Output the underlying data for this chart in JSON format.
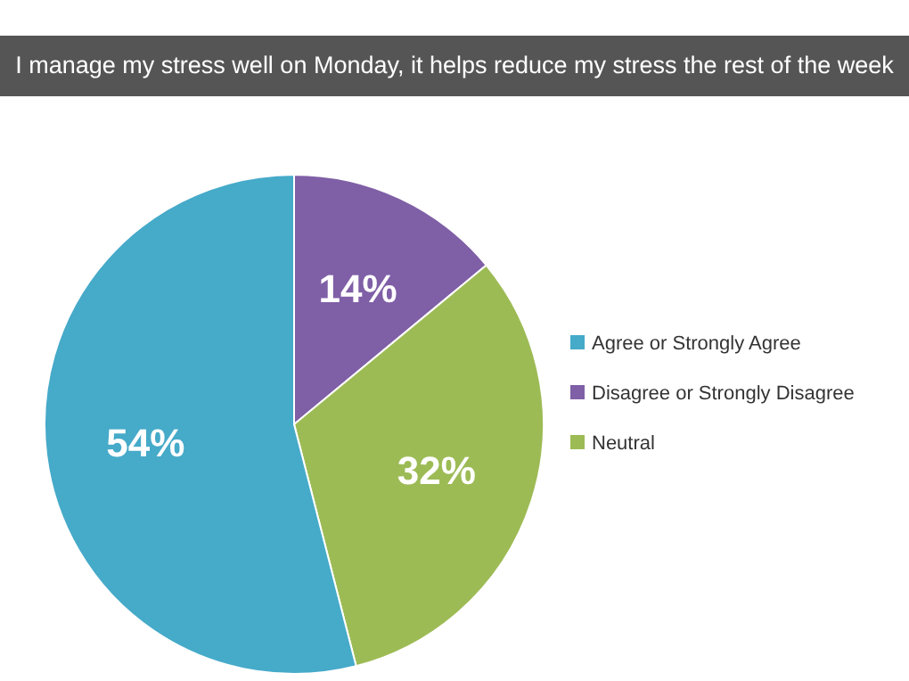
{
  "chart_data": {
    "type": "pie",
    "title": "I manage my stress well on Monday, it helps reduce my stress the rest of the week",
    "categories": [
      "Disagree or Strongly Disagree",
      "Neutral",
      "Agree or Strongly Agree"
    ],
    "values": [
      14,
      32,
      54
    ],
    "colors": [
      "#7f5fa6",
      "#9dbb55",
      "#46aac9"
    ],
    "value_labels": [
      "14%",
      "32%",
      "54%"
    ],
    "legend": "right"
  }
}
